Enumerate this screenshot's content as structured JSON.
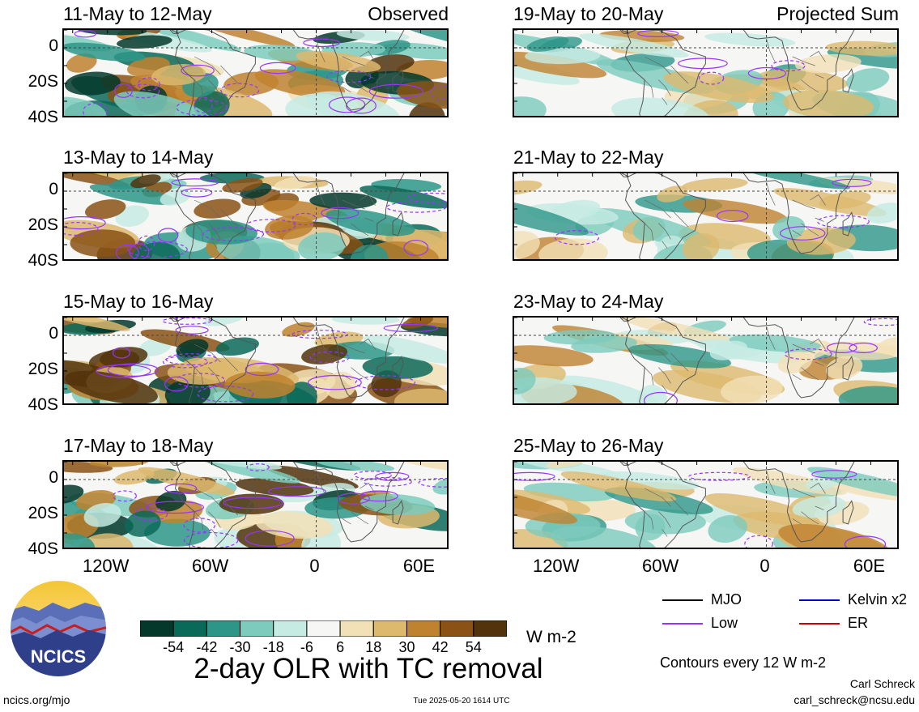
{
  "chart_data": {
    "type": "heatmap",
    "title": "2-day OLR with TC removal",
    "units": "W m-2",
    "x_ticks": [
      "120W",
      "60W",
      "0",
      "60E"
    ],
    "y_ticks": [
      "0",
      "20S",
      "40S"
    ],
    "lon_range": [
      -145,
      77
    ],
    "lat_range": [
      -40,
      10
    ],
    "colorbar": {
      "ticks": [
        "-54",
        "-42",
        "-30",
        "-18",
        "-6",
        "6",
        "18",
        "30",
        "42",
        "54"
      ],
      "colors": [
        "#03382b",
        "#0a6a59",
        "#2d9688",
        "#7ccbbd",
        "#c6ebe3",
        "#f6f6f4",
        "#f2e0b6",
        "#ddb96e",
        "#bf822f",
        "#8a5214",
        "#52330c"
      ]
    },
    "panels": [
      {
        "label": "11-May to 12-May",
        "corner": "Observed",
        "kind": "observed"
      },
      {
        "label": "13-May to 14-May",
        "corner": "",
        "kind": "observed"
      },
      {
        "label": "15-May to 16-May",
        "corner": "",
        "kind": "observed"
      },
      {
        "label": "17-May to 18-May",
        "corner": "",
        "kind": "observed"
      },
      {
        "label": "19-May to 20-May",
        "corner": "Projected Sum",
        "kind": "projected"
      },
      {
        "label": "21-May to 22-May",
        "corner": "",
        "kind": "projected"
      },
      {
        "label": "23-May to 24-May",
        "corner": "",
        "kind": "projected"
      },
      {
        "label": "25-May to 26-May",
        "corner": "",
        "kind": "projected"
      }
    ],
    "contour_legend": [
      {
        "label": "MJO",
        "color": "#000000"
      },
      {
        "label": "Kelvin x2",
        "color": "#0000cc"
      },
      {
        "label": "Low",
        "color": "#9933ff"
      },
      {
        "label": "ER",
        "color": "#cc0000"
      }
    ],
    "contour_note": "Contours every 12 W m-2"
  },
  "logo": {
    "text": "NCICS"
  },
  "footer": {
    "url": "ncics.org/mjo",
    "timestamp": "Tue 2025-05-20 1614 UTC",
    "author": "Carl Schreck",
    "email": "carl_schreck@ncsu.edu"
  }
}
